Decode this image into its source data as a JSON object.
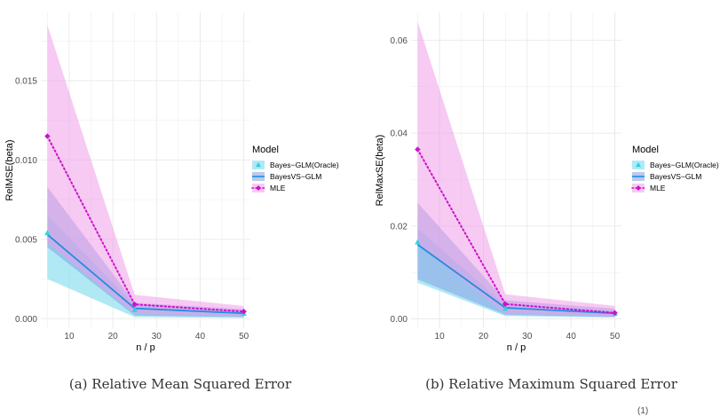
{
  "colors": {
    "oracle": "#2fd3e0",
    "bvs": "#1f8fe0",
    "mle": "#cc11cc",
    "oracle_band": "#8ee0ef",
    "bvs_band": "#8aa6e6",
    "mle_band": "#ee9ee8",
    "grid": "#ebebeb"
  },
  "chart_data": [
    {
      "type": "line",
      "title": "",
      "caption": "(a) Relative Mean Squared Error",
      "xlabel": "n / p",
      "ylabel": "RelMSE(beta)",
      "xlim": [
        3.5,
        51.5
      ],
      "ylim": [
        -0.0006,
        0.0193
      ],
      "x_ticks": [
        10,
        20,
        30,
        40,
        50
      ],
      "x_tick_labels": [
        "10",
        "20",
        "30",
        "40",
        "50"
      ],
      "y_ticks": [
        0,
        0.005,
        0.01,
        0.015
      ],
      "y_tick_labels": [
        "0.000",
        "0.005",
        "0.010",
        "0.015"
      ],
      "x": [
        5,
        25,
        50
      ],
      "grid": true,
      "legend": {
        "title": "Model",
        "position": "right",
        "entries": [
          "Bayes−GLM(Oracle)",
          "BayesVS−GLM",
          "MLE"
        ]
      },
      "series": [
        {
          "name": "Bayes−GLM(Oracle)",
          "values": [
            0.0054,
            0.00055,
            0.00032
          ],
          "lower": [
            0.0025,
            0.0001,
            5e-05
          ],
          "upper": [
            0.0065,
            0.0009,
            0.0005
          ],
          "line": "none",
          "marker": "triangle"
        },
        {
          "name": "BayesVS−GLM",
          "values": [
            0.0053,
            0.00065,
            0.00034
          ],
          "lower": [
            0.0045,
            0.0002,
            0.0001
          ],
          "upper": [
            0.0083,
            0.001,
            0.0006
          ],
          "line": "solid",
          "marker": "none"
        },
        {
          "name": "MLE",
          "values": [
            0.0115,
            0.0009,
            0.00045
          ],
          "lower": [
            0.0048,
            0.0003,
            0.00015
          ],
          "upper": [
            0.0185,
            0.0015,
            0.0008
          ],
          "line": "dotted",
          "marker": "diamond"
        }
      ]
    },
    {
      "type": "line",
      "title": "",
      "caption": "(b) Relative Maximum Squared Error",
      "xlabel": "n / p",
      "ylabel": "RelMaxSE(beta)",
      "xlim": [
        3.5,
        51.5
      ],
      "ylim": [
        -0.002,
        0.066
      ],
      "x_ticks": [
        10,
        20,
        30,
        40,
        50
      ],
      "x_tick_labels": [
        "10",
        "20",
        "30",
        "40",
        "50"
      ],
      "y_ticks": [
        0,
        0.02,
        0.04,
        0.06
      ],
      "y_tick_labels": [
        "0.00",
        "0.02",
        "0.04",
        "0.06"
      ],
      "x": [
        5,
        25,
        50
      ],
      "grid": true,
      "legend": {
        "title": "Model",
        "position": "right",
        "entries": [
          "Bayes−GLM(Oracle)",
          "BayesVS−GLM",
          "MLE"
        ]
      },
      "series": [
        {
          "name": "Bayes−GLM(Oracle)",
          "values": [
            0.0165,
            0.0022,
            0.0011
          ],
          "lower": [
            0.0078,
            0.0006,
            0.0003
          ],
          "upper": [
            0.0195,
            0.003,
            0.0018
          ],
          "line": "none",
          "marker": "triangle"
        },
        {
          "name": "BayesVS−GLM",
          "values": [
            0.016,
            0.0024,
            0.0012
          ],
          "lower": [
            0.0085,
            0.0009,
            0.0004
          ],
          "upper": [
            0.025,
            0.004,
            0.0022
          ],
          "line": "solid",
          "marker": "none"
        },
        {
          "name": "MLE",
          "values": [
            0.0365,
            0.0032,
            0.0013
          ],
          "lower": [
            0.016,
            0.0012,
            0.0005
          ],
          "upper": [
            0.064,
            0.0053,
            0.0028
          ],
          "line": "dotted",
          "marker": "diamond"
        }
      ]
    }
  ],
  "footer_mark": "(1)"
}
